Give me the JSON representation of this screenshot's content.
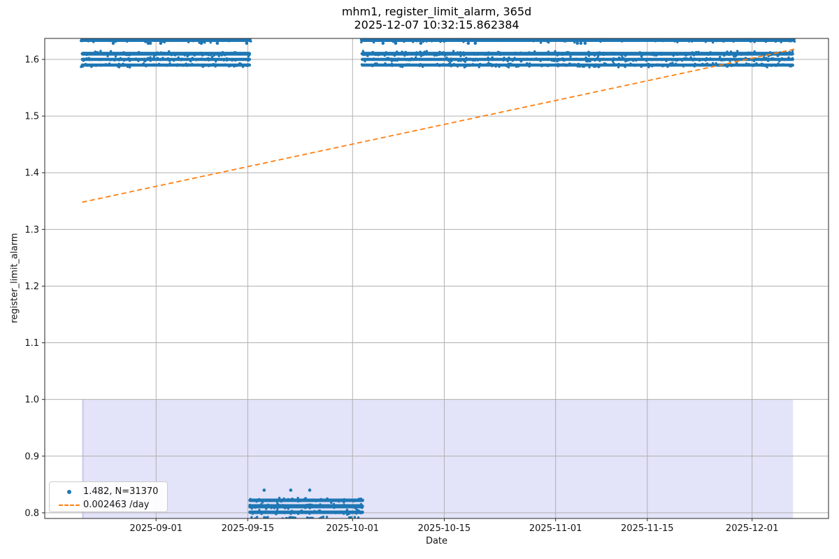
{
  "chart_data": {
    "type": "scatter",
    "title": "mhm1, register_limit_alarm, 365d",
    "subtitle": "2025-12-07 10:32:15.862384",
    "xlabel": "Date",
    "ylabel": "register_limit_alarm",
    "x_ticks": [
      "2025-09-01",
      "2025-09-15",
      "2025-10-01",
      "2025-10-15",
      "2025-11-01",
      "2025-11-15",
      "2025-12-01"
    ],
    "y_ticks": [
      0.8,
      0.9,
      1.0,
      1.1,
      1.2,
      1.3,
      1.4,
      1.5,
      1.6
    ],
    "xlim": [
      "2025-08-15T00:00:00",
      "2025-12-12T16:00:00"
    ],
    "ylim": [
      0.79,
      1.637
    ],
    "grid": true,
    "legend_position": "lower left",
    "legend": [
      {
        "label": "1.482, N=31370",
        "marker": "point",
        "color": "#1f77b4"
      },
      {
        "label": "0.002463 /day",
        "marker": "dashed_line",
        "color": "#ff7f0e"
      }
    ],
    "stats": {
      "mean": 1.482,
      "n": 31370,
      "slope_per_day": 0.002463,
      "window": "365d"
    },
    "colors": {
      "points": "#1f77b4",
      "trend": "#ff7f0e",
      "shade": "#e3e3f9",
      "shade_edge": "#cecdf1",
      "grid": "#b0b0b0",
      "spine": "#262626"
    },
    "shaded_region": {
      "x_start": "2025-08-20T17:00:00",
      "x_end": "2025-12-07T06:00:00",
      "y_min": 0.79,
      "y_max": 1.0
    },
    "trend_line": {
      "x_start": "2025-08-20T17:00:00",
      "y_start": 1.348,
      "x_end": "2025-12-07T10:32:15",
      "y_end": 1.618
    },
    "dense_bands": [
      {
        "value": 1.6345,
        "x_start": "2025-08-20T10:00:00",
        "x_end": "2025-09-15T14:00:00",
        "thickness": 6
      },
      {
        "value": 1.61,
        "x_start": "2025-08-20T12:00:00",
        "x_end": "2025-09-15T12:00:00",
        "thickness": 5.5
      },
      {
        "value": 1.6,
        "x_start": "2025-08-20T12:00:00",
        "x_end": "2025-09-15T12:00:00",
        "thickness": 4.5
      },
      {
        "value": 1.59,
        "x_start": "2025-08-20T12:00:00",
        "x_end": "2025-09-15T12:00:00",
        "thickness": 4.5
      },
      {
        "value": 1.6345,
        "x_start": "2025-10-02T03:00:00",
        "x_end": "2025-12-07T12:00:00",
        "thickness": 6
      },
      {
        "value": 1.61,
        "x_start": "2025-10-02T06:00:00",
        "x_end": "2025-12-07T10:00:00",
        "thickness": 5.5
      },
      {
        "value": 1.6,
        "x_start": "2025-10-02T06:00:00",
        "x_end": "2025-12-07T10:00:00",
        "thickness": 4.5
      },
      {
        "value": 1.59,
        "x_start": "2025-10-02T06:00:00",
        "x_end": "2025-12-07T10:00:00",
        "thickness": 4.5
      },
      {
        "value": 0.822,
        "x_start": "2025-09-15T02:00:00",
        "x_end": "2025-10-02T18:00:00",
        "thickness": 5
      },
      {
        "value": 0.8115,
        "x_start": "2025-09-15T02:00:00",
        "x_end": "2025-10-02T18:00:00",
        "thickness": 6
      },
      {
        "value": 0.801,
        "x_start": "2025-09-15T02:00:00",
        "x_end": "2025-10-02T18:00:00",
        "thickness": 5
      }
    ],
    "sparse_points": [
      {
        "value": 1.6285,
        "dates": [
          "2025-08-25T11:00:00",
          "2025-08-30T19:00:00",
          "2025-08-31T03:00:00",
          "2025-09-01T17:00:00",
          "2025-09-07T22:00:00",
          "2025-09-10T08:30:00",
          "2025-09-14T20:00:00",
          "2025-10-05T15:30:00",
          "2025-10-07T14:00:00",
          "2025-10-11T10:00:00",
          "2025-10-18T16:00:00",
          "2025-10-19T17:45:00",
          "2025-11-04T07:40:00",
          "2025-11-04T20:30:00",
          "2025-11-05T12:00:00"
        ]
      },
      {
        "value": 0.84,
        "dates": [
          "2025-09-17T12:00:00",
          "2025-09-21T13:30:00",
          "2025-09-24T11:00:00"
        ]
      }
    ],
    "bottom_row": {
      "value": 0.7915,
      "segments": [
        [
          "2025-09-15T14:00:00",
          "2025-09-16T10:00:00"
        ],
        [
          "2025-09-17T12:00:00",
          "2025-09-18T05:00:00"
        ],
        [
          "2025-09-19T18:00:00",
          "2025-09-22T07:00:00"
        ],
        [
          "2025-09-24T02:00:00",
          "2025-09-25T00:00:00"
        ],
        [
          "2025-09-25T10:00:00",
          "2025-09-27T02:00:00"
        ],
        [
          "2025-09-30T12:00:00",
          "2025-10-01T22:00:00"
        ]
      ]
    }
  }
}
